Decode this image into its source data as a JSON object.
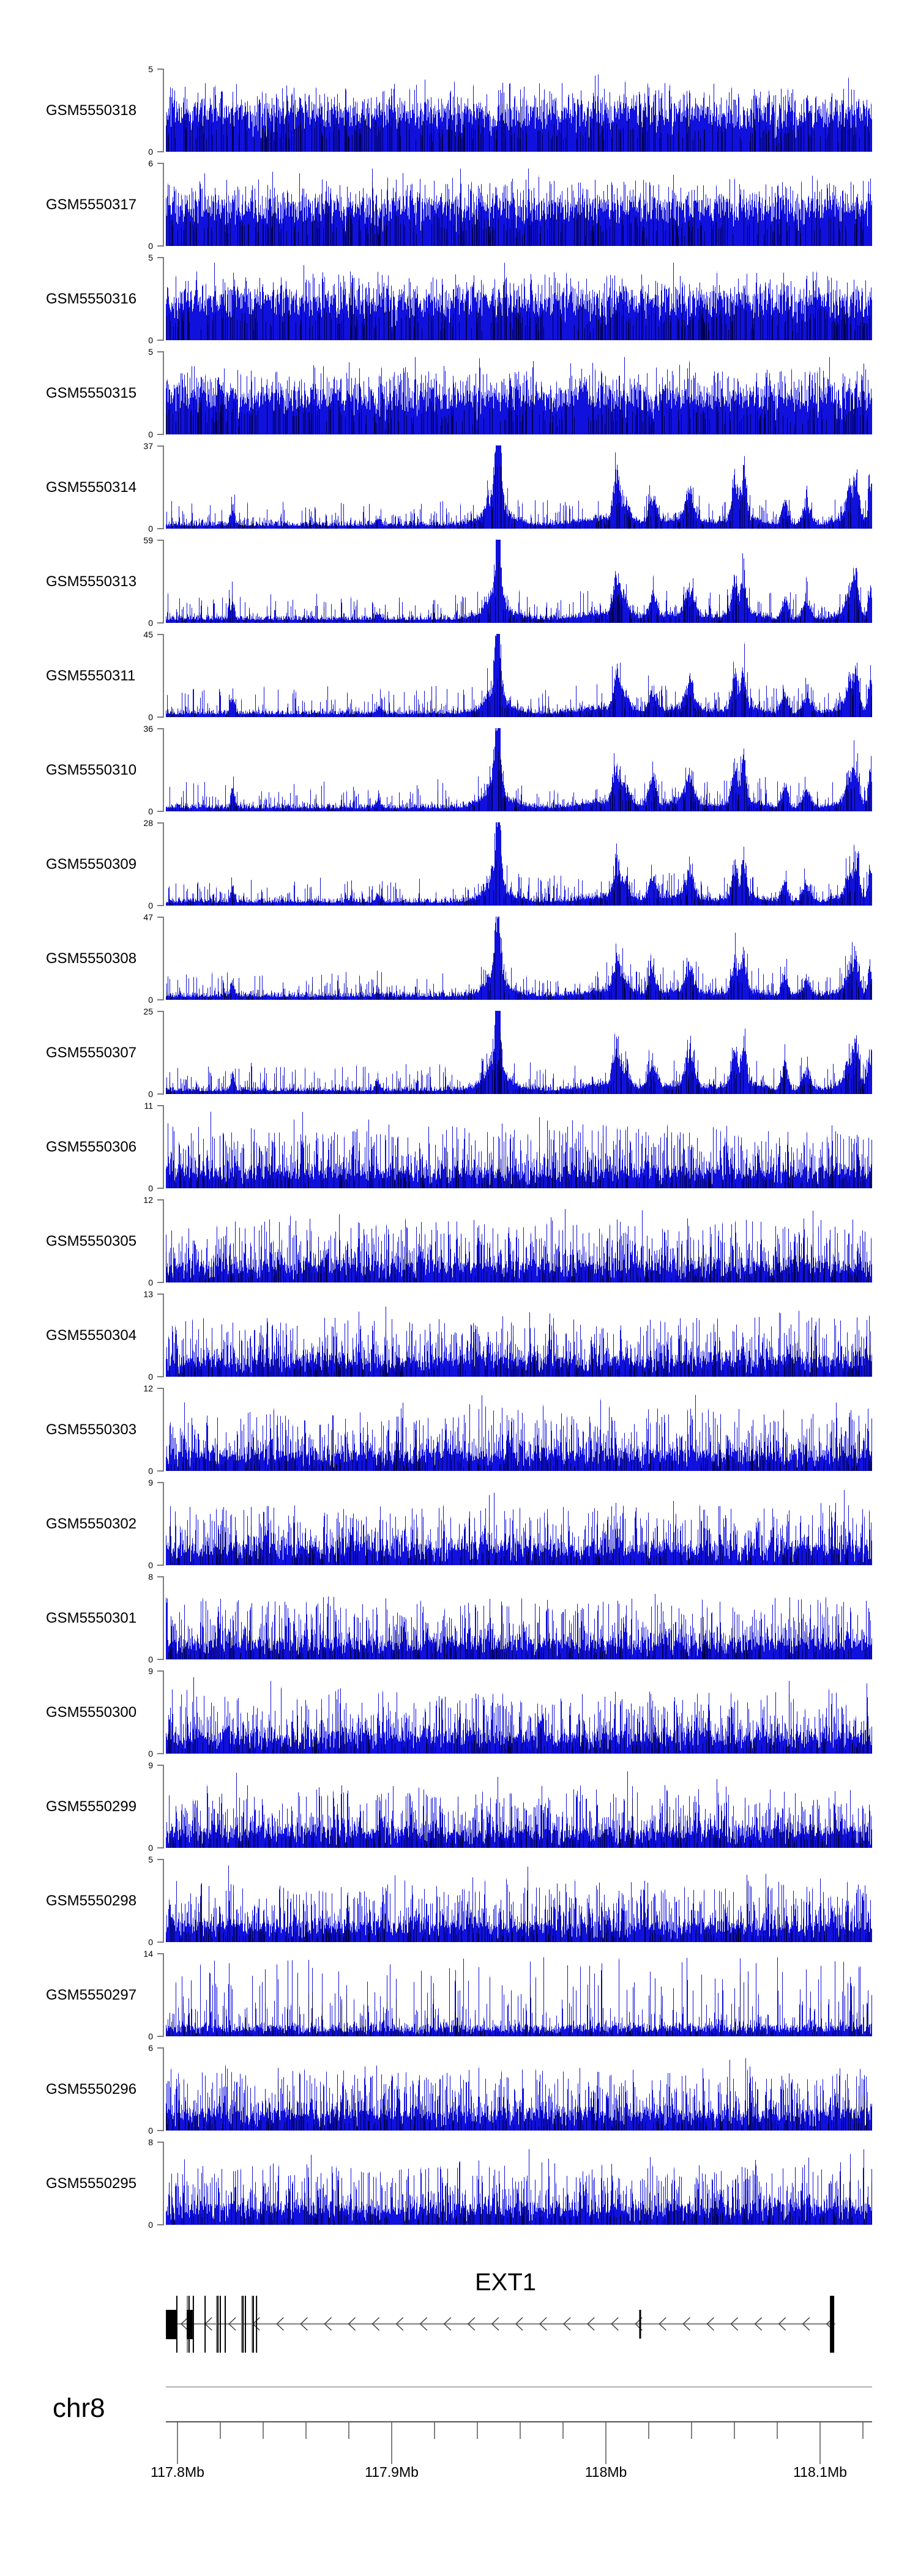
{
  "chart_data": {
    "type": "area",
    "description": "Genome browser coverage tracks (GEO samples) over the EXT1 locus on chr8",
    "colors": {
      "signal": "#1111dd",
      "signal_dark": "#000052",
      "signal_light": "#bcbcf0",
      "axis_bracket": "#7d7d7d",
      "gene_line": "#909090",
      "arrow": "#3a3a3a",
      "exon_dark": "#000000",
      "exon_gray": "#7a7a7a",
      "ideogram_line": "#b3b3b3",
      "ruler_line": "#555555",
      "text": "#000000"
    },
    "tracks": [
      {
        "label": "GSM5550318",
        "ymin": 0,
        "ymax": 5,
        "profile": "dense",
        "seed": 11
      },
      {
        "label": "GSM5550317",
        "ymin": 0,
        "ymax": 6,
        "profile": "dense",
        "seed": 22
      },
      {
        "label": "GSM5550316",
        "ymin": 0,
        "ymax": 5,
        "profile": "dense",
        "seed": 33
      },
      {
        "label": "GSM5550315",
        "ymin": 0,
        "ymax": 5,
        "profile": "dense",
        "seed": 44
      },
      {
        "label": "GSM5550314",
        "ymin": 0,
        "ymax": 37,
        "profile": "peaks",
        "seed": 55
      },
      {
        "label": "GSM5550313",
        "ymin": 0,
        "ymax": 59,
        "profile": "peaks",
        "seed": 66
      },
      {
        "label": "GSM5550311",
        "ymin": 0,
        "ymax": 45,
        "profile": "peaks",
        "seed": 77
      },
      {
        "label": "GSM5550310",
        "ymin": 0,
        "ymax": 36,
        "profile": "peaks",
        "seed": 88
      },
      {
        "label": "GSM5550309",
        "ymin": 0,
        "ymax": 28,
        "profile": "peaks",
        "seed": 99
      },
      {
        "label": "GSM5550308",
        "ymin": 0,
        "ymax": 47,
        "profile": "peaks",
        "seed": 110
      },
      {
        "label": "GSM5550307",
        "ymin": 0,
        "ymax": 25,
        "profile": "peaks",
        "seed": 121
      },
      {
        "label": "GSM5550306",
        "ymin": 0,
        "ymax": 11,
        "profile": "medium",
        "seed": 132
      },
      {
        "label": "GSM5550305",
        "ymin": 0,
        "ymax": 12,
        "profile": "medium",
        "seed": 143
      },
      {
        "label": "GSM5550304",
        "ymin": 0,
        "ymax": 13,
        "profile": "medium",
        "seed": 154
      },
      {
        "label": "GSM5550303",
        "ymin": 0,
        "ymax": 12,
        "profile": "medium",
        "seed": 165
      },
      {
        "label": "GSM5550302",
        "ymin": 0,
        "ymax": 9,
        "profile": "medium",
        "seed": 176
      },
      {
        "label": "GSM5550301",
        "ymin": 0,
        "ymax": 8,
        "profile": "medium",
        "seed": 187
      },
      {
        "label": "GSM5550300",
        "ymin": 0,
        "ymax": 9,
        "profile": "medium",
        "seed": 198
      },
      {
        "label": "GSM5550299",
        "ymin": 0,
        "ymax": 9,
        "profile": "medium",
        "seed": 209
      },
      {
        "label": "GSM5550298",
        "ymin": 0,
        "ymax": 5,
        "profile": "medium",
        "seed": 220
      },
      {
        "label": "GSM5550297",
        "ymin": 0,
        "ymax": 14,
        "profile": "sparse",
        "seed": 231
      },
      {
        "label": "GSM5550296",
        "ymin": 0,
        "ymax": 6,
        "profile": "medium",
        "seed": 242
      },
      {
        "label": "GSM5550295",
        "ymin": 0,
        "ymax": 8,
        "profile": "medium",
        "seed": 253
      }
    ],
    "signal_peaks": [
      {
        "f": 0.094,
        "h": 0.28,
        "w": 3
      },
      {
        "f": 0.3,
        "h": 0.1,
        "w": 4
      },
      {
        "f": 0.465,
        "h": 0.3,
        "w": 12
      },
      {
        "f": 0.47,
        "h": 1.4,
        "w": 4
      },
      {
        "f": 0.47,
        "h": 0.15,
        "w": 28
      },
      {
        "f": 0.62,
        "h": 0.1,
        "w": 36
      },
      {
        "f": 0.637,
        "h": 0.52,
        "w": 5
      },
      {
        "f": 0.648,
        "h": 0.28,
        "w": 9
      },
      {
        "f": 0.689,
        "h": 0.4,
        "w": 6
      },
      {
        "f": 0.73,
        "h": 0.09,
        "w": 32
      },
      {
        "f": 0.741,
        "h": 0.44,
        "w": 7
      },
      {
        "f": 0.805,
        "h": 0.55,
        "w": 5
      },
      {
        "f": 0.818,
        "h": 0.62,
        "w": 4
      },
      {
        "f": 0.82,
        "h": 0.1,
        "w": 26
      },
      {
        "f": 0.876,
        "h": 0.34,
        "w": 5
      },
      {
        "f": 0.907,
        "h": 0.28,
        "w": 7
      },
      {
        "f": 0.968,
        "h": 0.42,
        "w": 6
      },
      {
        "f": 0.97,
        "h": 0.12,
        "w": 22
      },
      {
        "f": 0.978,
        "h": 0.52,
        "w": 4
      },
      {
        "f": 0.997,
        "h": 0.5,
        "w": 3
      }
    ],
    "gene": {
      "name": "EXT1",
      "strand": "minus",
      "start_mb": 117.7946,
      "end_mb": 118.1071,
      "utr_boxes": [
        {
          "start_mb": 117.7946,
          "end_mb": 117.7997
        },
        {
          "start_mb": 117.8043,
          "end_mb": 117.8071
        }
      ],
      "exon_lines": [
        {
          "mb": 117.7997,
          "shade": "dark"
        },
        {
          "mb": 117.8046,
          "shade": "gray"
        },
        {
          "mb": 117.8054,
          "shade": "dark"
        },
        {
          "mb": 117.8074,
          "shade": "dark"
        },
        {
          "mb": 117.8129,
          "shade": "dark"
        },
        {
          "mb": 117.8183,
          "shade": "gray"
        },
        {
          "mb": 117.8189,
          "shade": "dark"
        },
        {
          "mb": 117.82,
          "shade": "dark"
        },
        {
          "mb": 117.8223,
          "shade": "dark"
        },
        {
          "mb": 117.83,
          "shade": "gray"
        },
        {
          "mb": 117.8306,
          "shade": "dark"
        },
        {
          "mb": 117.8317,
          "shade": "dark"
        },
        {
          "mb": 117.8349,
          "shade": "gray"
        },
        {
          "mb": 117.8354,
          "shade": "dark"
        },
        {
          "mb": 117.8369,
          "shade": "dark"
        }
      ],
      "mid_exon_mb": 118.016,
      "end_bar": {
        "start_mb": 118.1046,
        "end_mb": 118.1066
      }
    },
    "ruler": {
      "chrom_label": "chr8",
      "axis_start_mb": 117.7946,
      "axis_end_mb": 118.1243,
      "minor_tick_start_mb": 117.8,
      "minor_tick_step_mb": 0.02,
      "minor_tick_count": 17,
      "major_ticks": [
        {
          "mb": 117.8,
          "label": "117.8Mb"
        },
        {
          "mb": 117.9,
          "label": "117.9Mb"
        },
        {
          "mb": 118.0,
          "label": "118Mb"
        },
        {
          "mb": 118.1,
          "label": "118.1Mb"
        }
      ]
    },
    "axis_zero_label": "0"
  }
}
